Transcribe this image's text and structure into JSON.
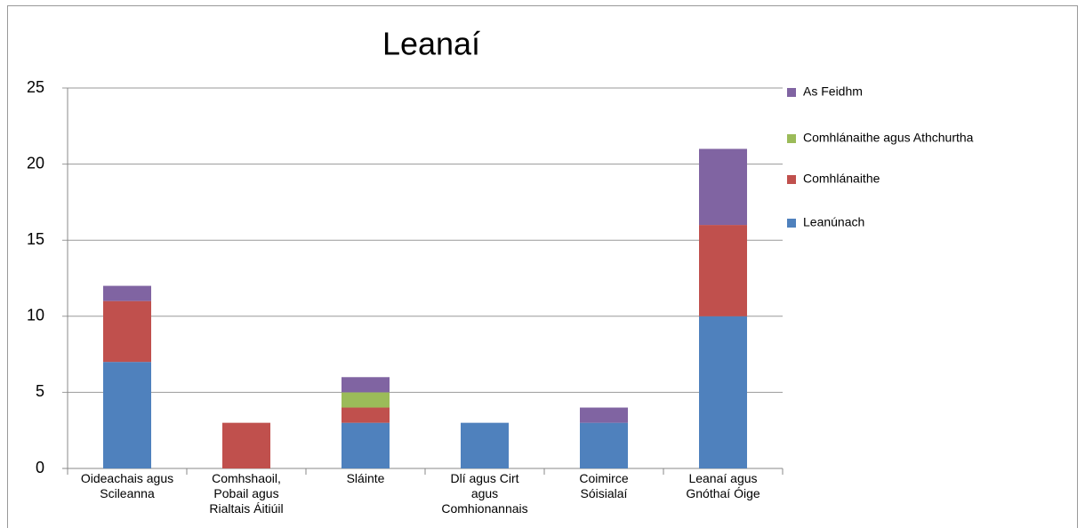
{
  "chart_data": {
    "type": "stacked_bar",
    "title": "Leanaí",
    "categories": [
      "Oideachais agus Scileanna",
      "Comhshaoil, Pobail agus Rialtais Áitiúil",
      "Sláinte",
      "Dlí agus Cirt agus Comhionannais",
      "Coimirce Sóisialaí",
      "Leanaí agus Gnóthaí Óige"
    ],
    "series": [
      {
        "name": "Leanúnach",
        "color": "#4f81bd",
        "values": [
          7,
          0,
          3,
          3,
          3,
          10
        ]
      },
      {
        "name": "Comhlánaithe",
        "color": "#c0504d",
        "values": [
          4,
          3,
          1,
          0,
          0,
          6
        ]
      },
      {
        "name": "Comhlánaithe agus Athchurtha",
        "color": "#9bbb59",
        "values": [
          0,
          0,
          1,
          0,
          0,
          0
        ]
      },
      {
        "name": "As Feidhm",
        "color": "#8064a2",
        "values": [
          1,
          0,
          1,
          0,
          1,
          5
        ]
      }
    ],
    "ylim": [
      0,
      25
    ],
    "yticks": [
      0,
      5,
      10,
      15,
      20,
      25
    ],
    "grid": true,
    "legend": "right"
  }
}
